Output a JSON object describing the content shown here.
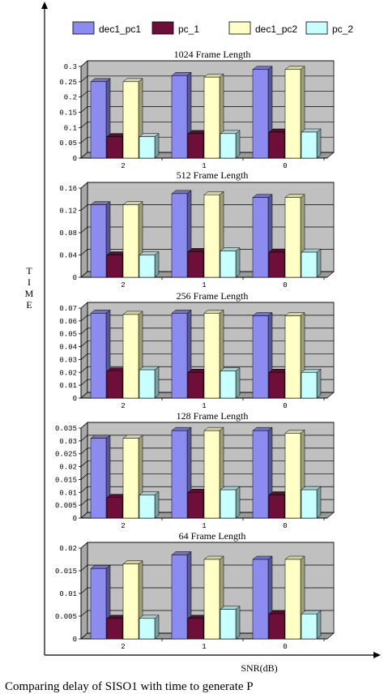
{
  "figure": {
    "y_axis_label": "TIME",
    "x_axis_label": "SNR(dB)",
    "caption": "Comparing delay of SISO1 with time to generate P"
  },
  "legend": [
    {
      "name": "dec1_pc1",
      "color": "#8c8cf0"
    },
    {
      "name": "pc_1",
      "color": "#6e0f3a"
    },
    {
      "name": "dec1_pc2",
      "color": "#ffffc6"
    },
    {
      "name": "pc_2",
      "color": "#c8ffff"
    }
  ],
  "colors": {
    "plot_background": "#c0c0c0",
    "grid": "#000000",
    "frame": "#000000"
  },
  "chart_data": [
    {
      "type": "bar",
      "title": "1024 Frame Length",
      "categories": [
        "2",
        "1",
        "0"
      ],
      "yticks": [
        "0",
        "0.05",
        "0.1",
        "0.15",
        "0.2",
        "0.25",
        "0.3"
      ],
      "ylim": [
        0,
        0.3
      ],
      "grid": true,
      "series": [
        {
          "name": "dec1_pc1",
          "values": [
            0.25,
            0.27,
            0.29
          ]
        },
        {
          "name": "pc_1",
          "values": [
            0.07,
            0.08,
            0.085
          ]
        },
        {
          "name": "dec1_pc2",
          "values": [
            0.25,
            0.265,
            0.29
          ]
        },
        {
          "name": "pc_2",
          "values": [
            0.07,
            0.08,
            0.085
          ]
        }
      ]
    },
    {
      "type": "bar",
      "title": "512 Frame Length",
      "categories": [
        "2",
        "1",
        "0"
      ],
      "yticks": [
        "0",
        "0.04",
        "0.08",
        "0.12",
        "0.16"
      ],
      "ylim": [
        0,
        0.16
      ],
      "grid": true,
      "series": [
        {
          "name": "dec1_pc1",
          "values": [
            0.13,
            0.15,
            0.143
          ]
        },
        {
          "name": "pc_1",
          "values": [
            0.04,
            0.046,
            0.045
          ]
        },
        {
          "name": "dec1_pc2",
          "values": [
            0.13,
            0.148,
            0.143
          ]
        },
        {
          "name": "pc_2",
          "values": [
            0.04,
            0.047,
            0.045
          ]
        }
      ]
    },
    {
      "type": "bar",
      "title": "256 Frame Length",
      "categories": [
        "2",
        "1",
        "0"
      ],
      "yticks": [
        "0",
        "0.01",
        "0.02",
        "0.03",
        "0.04",
        "0.05",
        "0.06",
        "0.07"
      ],
      "ylim": [
        0,
        0.07
      ],
      "grid": true,
      "series": [
        {
          "name": "dec1_pc1",
          "values": [
            0.066,
            0.066,
            0.064
          ]
        },
        {
          "name": "pc_1",
          "values": [
            0.021,
            0.02,
            0.02
          ]
        },
        {
          "name": "dec1_pc2",
          "values": [
            0.065,
            0.066,
            0.064
          ]
        },
        {
          "name": "pc_2",
          "values": [
            0.022,
            0.021,
            0.02
          ]
        }
      ]
    },
    {
      "type": "bar",
      "title": "128 Frame Length",
      "categories": [
        "2",
        "1",
        "0"
      ],
      "yticks": [
        "0",
        "0.005",
        "0.01",
        "0.015",
        "0.02",
        "0.025",
        "0.03",
        "0.035"
      ],
      "ylim": [
        0,
        0.035
      ],
      "grid": true,
      "series": [
        {
          "name": "dec1_pc1",
          "values": [
            0.031,
            0.034,
            0.034
          ]
        },
        {
          "name": "pc_1",
          "values": [
            0.008,
            0.01,
            0.009
          ]
        },
        {
          "name": "dec1_pc2",
          "values": [
            0.031,
            0.034,
            0.033
          ]
        },
        {
          "name": "pc_2",
          "values": [
            0.009,
            0.011,
            0.011
          ]
        }
      ]
    },
    {
      "type": "bar",
      "title": "64 Frame Length",
      "categories": [
        "2",
        "1",
        "0"
      ],
      "yticks": [
        "0",
        "0.005",
        "0.01",
        "0.015",
        "0.02"
      ],
      "ylim": [
        0,
        0.02
      ],
      "grid": true,
      "series": [
        {
          "name": "dec1_pc1",
          "values": [
            0.0155,
            0.0185,
            0.0175
          ]
        },
        {
          "name": "pc_1",
          "values": [
            0.0045,
            0.0045,
            0.0055
          ]
        },
        {
          "name": "dec1_pc2",
          "values": [
            0.0165,
            0.0175,
            0.0175
          ]
        },
        {
          "name": "pc_2",
          "values": [
            0.0045,
            0.0065,
            0.0055
          ]
        }
      ]
    }
  ]
}
